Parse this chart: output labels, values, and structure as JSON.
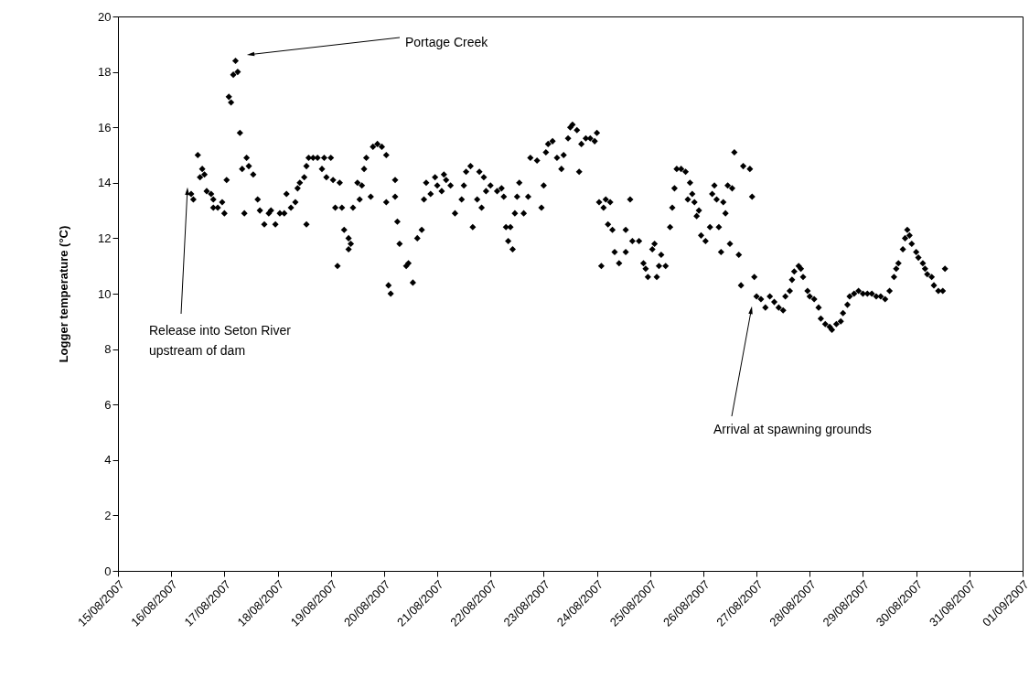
{
  "chart_data": {
    "type": "scatter",
    "ylabel": "Logger temperature (°C)",
    "marker": "diamond",
    "color": "#000000",
    "xlim": [
      "2007-08-15",
      "2007-09-01"
    ],
    "xticks": [
      {
        "value": "2007-08-15",
        "label": "15/08/2007"
      },
      {
        "value": "2007-08-16",
        "label": "16/08/2007"
      },
      {
        "value": "2007-08-17",
        "label": "17/08/2007"
      },
      {
        "value": "2007-08-18",
        "label": "18/08/2007"
      },
      {
        "value": "2007-08-19",
        "label": "19/08/2007"
      },
      {
        "value": "2007-08-20",
        "label": "20/08/2007"
      },
      {
        "value": "2007-08-21",
        "label": "21/08/2007"
      },
      {
        "value": "2007-08-22",
        "label": "22/08/2007"
      },
      {
        "value": "2007-08-23",
        "label": "23/08/2007"
      },
      {
        "value": "2007-08-24",
        "label": "24/08/2007"
      },
      {
        "value": "2007-08-25",
        "label": "25/08/2007"
      },
      {
        "value": "2007-08-26",
        "label": "26/08/2007"
      },
      {
        "value": "2007-08-27",
        "label": "27/08/2007"
      },
      {
        "value": "2007-08-28",
        "label": "28/08/2007"
      },
      {
        "value": "2007-08-29",
        "label": "29/08/2007"
      },
      {
        "value": "2007-08-30",
        "label": "30/08/2007"
      },
      {
        "value": "2007-08-31",
        "label": "31/08/2007"
      },
      {
        "value": "2007-09-01",
        "label": "01/09/2007"
      }
    ],
    "ylim": [
      0,
      20
    ],
    "yticks": [
      0,
      2,
      4,
      6,
      8,
      10,
      12,
      14,
      16,
      18,
      20
    ],
    "annotations": [
      "Portage Creek",
      "Release into Seton River upstream of dam",
      "Arrival at spawning grounds"
    ],
    "x": [
      "2007-08-16T09:00",
      "2007-08-16T10:00",
      "2007-08-16T12:00",
      "2007-08-16T14:00",
      "2007-08-16T15:00",
      "2007-08-16T13:00",
      "2007-08-16T16:00",
      "2007-08-16T18:00",
      "2007-08-16T19:00",
      "2007-08-16T19:00",
      "2007-08-16T21:00",
      "2007-08-16T23:00",
      "2007-08-17T00:00",
      "2007-08-17T01:00",
      "2007-08-17T02:00",
      "2007-08-17T03:00",
      "2007-08-17T04:00",
      "2007-08-17T05:00",
      "2007-08-17T06:00",
      "2007-08-17T07:00",
      "2007-08-17T08:00",
      "2007-08-17T09:00",
      "2007-08-17T10:00",
      "2007-08-17T11:00",
      "2007-08-17T13:00",
      "2007-08-17T15:00",
      "2007-08-17T16:00",
      "2007-08-17T18:00",
      "2007-08-17T20:00",
      "2007-08-17T21:00",
      "2007-08-17T23:00",
      "2007-08-18T01:00",
      "2007-08-18T03:00",
      "2007-08-18T04:00",
      "2007-08-18T06:00",
      "2007-08-18T08:00",
      "2007-08-18T09:00",
      "2007-08-18T10:00",
      "2007-08-18T12:00",
      "2007-08-18T13:00",
      "2007-08-18T13:00",
      "2007-08-18T14:00",
      "2007-08-18T16:00",
      "2007-08-18T18:00",
      "2007-08-18T20:00",
      "2007-08-18T21:00",
      "2007-08-18T22:00",
      "2007-08-19T00:00",
      "2007-08-19T01:00",
      "2007-08-19T02:00",
      "2007-08-19T03:00",
      "2007-08-19T04:00",
      "2007-08-19T05:00",
      "2007-08-19T06:00",
      "2007-08-19T08:00",
      "2007-08-19T08:00",
      "2007-08-19T09:00",
      "2007-08-19T10:00",
      "2007-08-19T12:00",
      "2007-08-19T13:00",
      "2007-08-19T14:00",
      "2007-08-19T15:00",
      "2007-08-19T16:00",
      "2007-08-19T18:00",
      "2007-08-19T19:00",
      "2007-08-19T21:00",
      "2007-08-19T23:00",
      "2007-08-20T01:00",
      "2007-08-20T01:00",
      "2007-08-20T02:00",
      "2007-08-20T03:00",
      "2007-08-20T05:00",
      "2007-08-20T05:00",
      "2007-08-20T06:00",
      "2007-08-20T07:00",
      "2007-08-20T10:00",
      "2007-08-20T11:00",
      "2007-08-20T13:00",
      "2007-08-20T15:00",
      "2007-08-20T17:00",
      "2007-08-20T18:00",
      "2007-08-20T19:00",
      "2007-08-20T21:00",
      "2007-08-20T23:00",
      "2007-08-21T00:00",
      "2007-08-21T02:00",
      "2007-08-21T03:00",
      "2007-08-21T04:00",
      "2007-08-21T06:00",
      "2007-08-21T08:00",
      "2007-08-21T11:00",
      "2007-08-21T12:00",
      "2007-08-21T13:00",
      "2007-08-21T15:00",
      "2007-08-21T16:00",
      "2007-08-21T18:00",
      "2007-08-21T19:00",
      "2007-08-21T20:00",
      "2007-08-21T21:00",
      "2007-08-21T22:00",
      "2007-08-22T00:00",
      "2007-08-22T03:00",
      "2007-08-22T05:00",
      "2007-08-22T06:00",
      "2007-08-22T07:00",
      "2007-08-22T08:00",
      "2007-08-22T09:00",
      "2007-08-22T10:00",
      "2007-08-22T11:00",
      "2007-08-22T12:00",
      "2007-08-22T13:00",
      "2007-08-22T15:00",
      "2007-08-22T17:00",
      "2007-08-22T18:00",
      "2007-08-22T21:00",
      "2007-08-22T23:00",
      "2007-08-23T00:00",
      "2007-08-23T01:00",
      "2007-08-23T02:00",
      "2007-08-23T04:00",
      "2007-08-23T06:00",
      "2007-08-23T08:00",
      "2007-08-23T09:00",
      "2007-08-23T11:00",
      "2007-08-23T12:00",
      "2007-08-23T13:00",
      "2007-08-23T15:00",
      "2007-08-23T16:00",
      "2007-08-23T17:00",
      "2007-08-23T19:00",
      "2007-08-23T21:00",
      "2007-08-23T23:00",
      "2007-08-24T00:00",
      "2007-08-24T01:00",
      "2007-08-24T02:00",
      "2007-08-24T03:00",
      "2007-08-24T04:00",
      "2007-08-24T05:00",
      "2007-08-24T06:00",
      "2007-08-24T07:00",
      "2007-08-24T08:00",
      "2007-08-24T10:00",
      "2007-08-24T13:00",
      "2007-08-24T13:00",
      "2007-08-24T15:00",
      "2007-08-24T16:00",
      "2007-08-24T19:00",
      "2007-08-24T21:00",
      "2007-08-24T22:00",
      "2007-08-24T23:00",
      "2007-08-25T01:00",
      "2007-08-25T02:00",
      "2007-08-25T03:00",
      "2007-08-25T04:00",
      "2007-08-25T05:00",
      "2007-08-25T07:00",
      "2007-08-25T09:00",
      "2007-08-25T10:00",
      "2007-08-25T11:00",
      "2007-08-25T12:00",
      "2007-08-25T14:00",
      "2007-08-25T16:00",
      "2007-08-25T17:00",
      "2007-08-25T18:00",
      "2007-08-25T19:00",
      "2007-08-25T20:00",
      "2007-08-25T21:00",
      "2007-08-25T22:00",
      "2007-08-25T23:00",
      "2007-08-26T01:00",
      "2007-08-26T03:00",
      "2007-08-26T04:00",
      "2007-08-26T05:00",
      "2007-08-26T06:00",
      "2007-08-26T07:00",
      "2007-08-26T08:00",
      "2007-08-26T09:00",
      "2007-08-26T10:00",
      "2007-08-26T11:00",
      "2007-08-26T12:00",
      "2007-08-26T13:00",
      "2007-08-26T14:00",
      "2007-08-26T16:00",
      "2007-08-26T17:00",
      "2007-08-26T18:00",
      "2007-08-26T21:00",
      "2007-08-26T22:00",
      "2007-08-26T23:00",
      "2007-08-27T00:00",
      "2007-08-27T02:00",
      "2007-08-27T04:00",
      "2007-08-27T06:00",
      "2007-08-27T08:00",
      "2007-08-27T10:00",
      "2007-08-27T12:00",
      "2007-08-27T13:00",
      "2007-08-27T15:00",
      "2007-08-27T16:00",
      "2007-08-27T17:00",
      "2007-08-27T19:00",
      "2007-08-27T20:00",
      "2007-08-27T21:00",
      "2007-08-27T23:00",
      "2007-08-28T00:00",
      "2007-08-28T02:00",
      "2007-08-28T04:00",
      "2007-08-28T05:00",
      "2007-08-28T07:00",
      "2007-08-28T09:00",
      "2007-08-28T10:00",
      "2007-08-28T12:00",
      "2007-08-28T14:00",
      "2007-08-28T15:00",
      "2007-08-28T17:00",
      "2007-08-28T18:00",
      "2007-08-28T20:00",
      "2007-08-28T22:00",
      "2007-08-29T00:00",
      "2007-08-29T02:00",
      "2007-08-29T04:00",
      "2007-08-29T06:00",
      "2007-08-29T08:00",
      "2007-08-29T10:00",
      "2007-08-29T12:00",
      "2007-08-29T14:00",
      "2007-08-29T15:00",
      "2007-08-29T16:00",
      "2007-08-29T18:00",
      "2007-08-29T19:00",
      "2007-08-29T20:00",
      "2007-08-29T21:00",
      "2007-08-29T22:00",
      "2007-08-30T00:00",
      "2007-08-30T01:00",
      "2007-08-30T03:00",
      "2007-08-30T04:00",
      "2007-08-30T05:00",
      "2007-08-30T07:00",
      "2007-08-30T08:00",
      "2007-08-30T10:00",
      "2007-08-30T12:00",
      "2007-08-30T13:00"
    ],
    "values": [
      13.6,
      13.4,
      15.0,
      14.5,
      14.3,
      14.2,
      13.7,
      13.6,
      13.4,
      13.1,
      13.1,
      13.3,
      12.9,
      14.1,
      17.1,
      16.9,
      17.9,
      18.4,
      18.0,
      15.8,
      14.5,
      12.9,
      14.9,
      14.6,
      14.3,
      13.4,
      13.0,
      12.5,
      12.9,
      13.0,
      12.5,
      12.9,
      12.9,
      13.6,
      13.1,
      13.3,
      13.8,
      14.0,
      14.2,
      12.5,
      14.6,
      14.9,
      14.9,
      14.9,
      14.5,
      14.9,
      14.2,
      14.9,
      14.1,
      13.1,
      11.0,
      14.0,
      13.1,
      12.3,
      12.0,
      11.6,
      11.8,
      13.1,
      14.0,
      13.4,
      13.9,
      14.5,
      14.9,
      13.5,
      15.3,
      15.4,
      15.3,
      15.0,
      13.3,
      10.3,
      10.0,
      14.1,
      13.5,
      12.6,
      11.8,
      11.0,
      11.1,
      10.4,
      12.0,
      12.3,
      13.4,
      14.0,
      13.6,
      14.2,
      13.9,
      13.7,
      14.3,
      14.1,
      13.9,
      12.9,
      13.4,
      13.9,
      14.4,
      14.6,
      12.4,
      13.4,
      14.4,
      13.1,
      14.2,
      13.7,
      13.9,
      13.7,
      13.8,
      13.5,
      12.4,
      11.9,
      12.4,
      11.6,
      12.9,
      13.5,
      14.0,
      12.9,
      13.5,
      14.9,
      14.8,
      13.1,
      13.9,
      15.1,
      15.4,
      15.5,
      14.9,
      14.5,
      15.0,
      15.6,
      16.0,
      16.1,
      15.9,
      14.4,
      15.4,
      15.6,
      15.6,
      15.5,
      15.8,
      13.3,
      11.0,
      13.1,
      13.4,
      12.5,
      13.3,
      12.3,
      11.5,
      11.1,
      12.3,
      11.5,
      13.4,
      11.9,
      11.9,
      11.1,
      10.9,
      10.6,
      11.6,
      11.8,
      10.6,
      11.0,
      11.4,
      11.0,
      12.4,
      13.1,
      13.8,
      14.5,
      14.5,
      14.4,
      13.4,
      14.0,
      13.6,
      13.3,
      12.8,
      13.0,
      12.1,
      11.9,
      12.4,
      13.6,
      13.9,
      13.4,
      12.4,
      11.5,
      13.3,
      12.9,
      13.9,
      11.8,
      13.8,
      15.1,
      11.4,
      10.3,
      14.6,
      14.5,
      13.5,
      10.6,
      9.9,
      9.8,
      9.5,
      9.9,
      9.7,
      9.5,
      9.4,
      9.9,
      10.1,
      10.5,
      10.8,
      11.0,
      10.9,
      10.6,
      10.1,
      9.9,
      9.8,
      9.5,
      9.1,
      8.9,
      8.8,
      8.7,
      8.9,
      9.0,
      9.3,
      9.6,
      9.9,
      10.0,
      10.1,
      10.0,
      10.0,
      10.0,
      9.9,
      9.9,
      9.8,
      10.1,
      10.6,
      10.9,
      11.1,
      11.6,
      12.0,
      12.3,
      12.1,
      11.8,
      11.5,
      11.3,
      11.1,
      10.9,
      10.7,
      10.6,
      10.3,
      10.1,
      10.1,
      10.9
    ]
  }
}
